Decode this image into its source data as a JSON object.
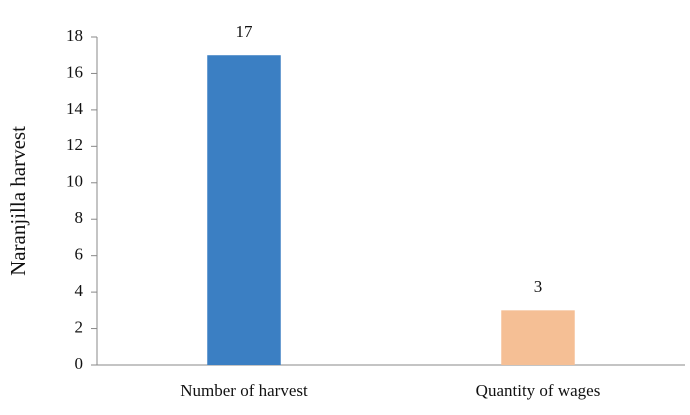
{
  "chart_data": {
    "type": "bar",
    "y_label": "Naranjilla harvest",
    "categories": [
      "Number of harvest",
      "Quantity of wages"
    ],
    "values": [
      17,
      3
    ],
    "colors": [
      "#3b7fc3",
      "#f5bf95"
    ],
    "ylim": [
      0,
      18
    ],
    "yticks": [
      0,
      2,
      4,
      6,
      8,
      10,
      12,
      14,
      16,
      18
    ],
    "grid": false,
    "data_labels": true
  }
}
